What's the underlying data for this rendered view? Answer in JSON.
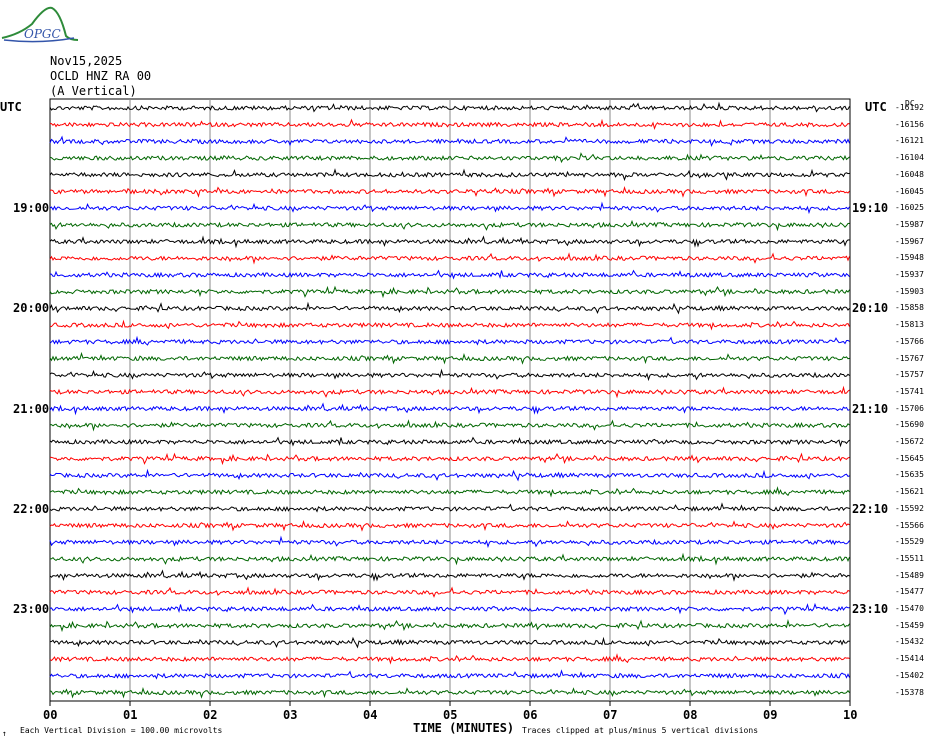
{
  "logo": {
    "text": "OPGC"
  },
  "header": {
    "date": "Nov15,2025",
    "station": "OCLD HNZ RA 00",
    "component": "(A Vertical)"
  },
  "utc_left": "UTC",
  "utc_right": "UTC",
  "colors": {
    "traces": [
      "#000000",
      "#ff0000",
      "#0000ff",
      "#006600"
    ],
    "grid": "#888888"
  },
  "chart_data": {
    "type": "line",
    "description_of_axes": "helicorder",
    "xlabel": "TIME (MINUTES)",
    "x_ticks": [
      "00",
      "01",
      "02",
      "03",
      "04",
      "05",
      "06",
      "07",
      "08",
      "09",
      "10"
    ],
    "xlim": [
      0,
      10
    ],
    "left_time_labels": [
      {
        "row": 6,
        "label": "19:00"
      },
      {
        "row": 12,
        "label": "20:00"
      },
      {
        "row": 18,
        "label": "21:00"
      },
      {
        "row": 24,
        "label": "22:00"
      },
      {
        "row": 30,
        "label": "23:00"
      }
    ],
    "right_time_labels": [
      {
        "row": 6,
        "label": "19:10"
      },
      {
        "row": 12,
        "label": "20:10"
      },
      {
        "row": 18,
        "label": "21:10"
      },
      {
        "row": 24,
        "label": "22:10"
      },
      {
        "row": 30,
        "label": "23:10"
      }
    ],
    "row_offsets": [
      "-16192",
      "-16156",
      "-16121",
      "-16104",
      "-16048",
      "-16045",
      "-16025",
      "-15987",
      "-15967",
      "-15948",
      "-15937",
      "-15903",
      "-15858",
      "-15813",
      "-15766",
      "-15767",
      "-15757",
      "-15741",
      "-15706",
      "-15690",
      "-15672",
      "-15645",
      "-15635",
      "-15621",
      "-15592",
      "-15566",
      "-15529",
      "-15511",
      "-15489",
      "-15477",
      "-15470",
      "-15459",
      "-15432",
      "-15414",
      "-15402",
      "-15378"
    ],
    "row_unit_label": "DC"
  },
  "footer": {
    "left_mark": "↑",
    "division": "Each Vertical Division =  100.00 microvolts",
    "clipped": "Traces clipped at plus/minus 5 vertical divisions"
  }
}
